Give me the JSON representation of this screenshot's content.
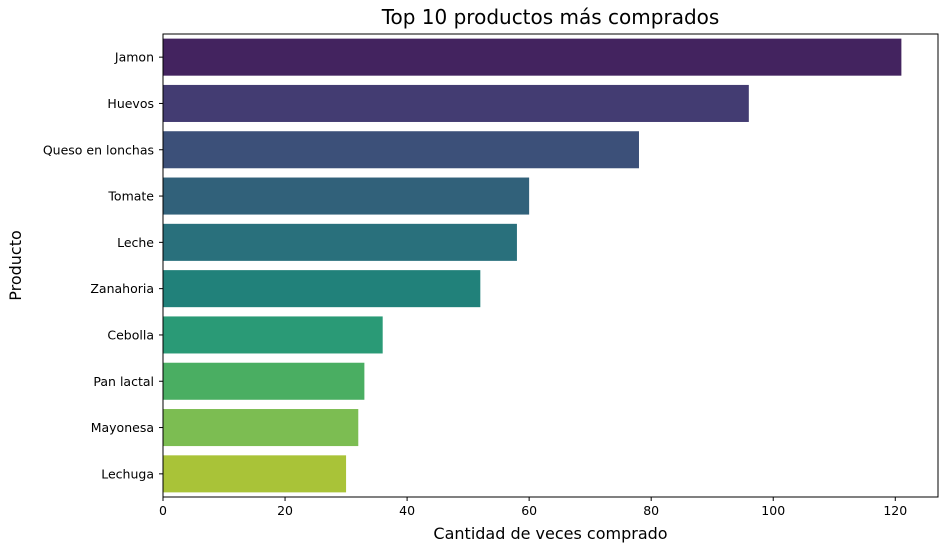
{
  "chart_data": {
    "type": "bar",
    "orientation": "horizontal",
    "title": "Top 10 productos más comprados",
    "xlabel": "Cantidad de veces comprado",
    "ylabel": "Producto",
    "categories": [
      "Jamon",
      "Huevos",
      "Queso en lonchas",
      "Tomate",
      "Leche",
      "Zanahoria",
      "Cebolla",
      "Pan lactal",
      "Mayonesa",
      "Lechuga"
    ],
    "values": [
      121,
      96,
      78,
      60,
      58,
      52,
      36,
      33,
      32,
      30
    ],
    "colors": [
      "#43235f",
      "#433c72",
      "#3c5079",
      "#31617a",
      "#29707c",
      "#21817a",
      "#2a9a76",
      "#4aae62",
      "#7cbd52",
      "#a9c338"
    ],
    "xlim": [
      0,
      127
    ],
    "xticks": [
      0,
      20,
      40,
      60,
      80,
      100,
      120
    ],
    "grid": false,
    "legend": "none"
  }
}
